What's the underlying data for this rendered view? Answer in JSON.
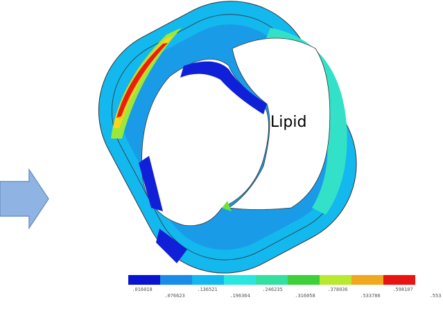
{
  "annotation": "Lipid",
  "legend": {
    "labels": [
      ".016018",
      ".076623",
      ".136521",
      ".196364",
      ".246235",
      ".316058",
      ".378036",
      ".533786",
      ".598107",
      ".553"
    ]
  }
}
